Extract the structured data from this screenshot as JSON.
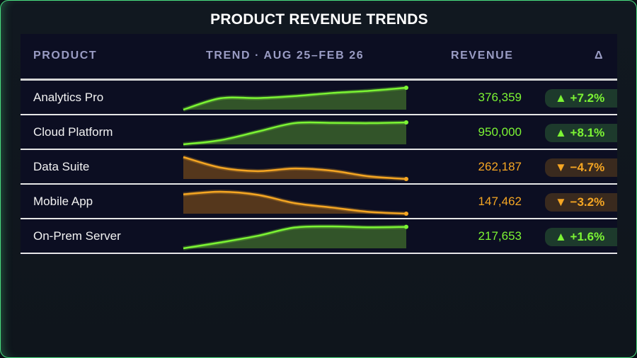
{
  "title": "PRODUCT REVENUE TRENDS",
  "headers": {
    "product": "PRODUCT",
    "trend": "TREND · AUG 25–FEB 26",
    "revenue": "REVENUE",
    "delta": "Δ"
  },
  "colors": {
    "up": "#7cf534",
    "down": "#f5a623"
  },
  "chart_data": {
    "type": "table",
    "title": "PRODUCT REVENUE TRENDS",
    "columns": [
      "PRODUCT",
      "TREND · AUG 25–FEB 26",
      "REVENUE",
      "Δ"
    ],
    "rows": [
      {
        "product": "Analytics Pro",
        "revenue": "376,359",
        "delta": "▲ +7.2%",
        "direction": "up",
        "trend": [
          0.0,
          0.52,
          0.53,
          0.62,
          0.76,
          0.86,
          1.0
        ]
      },
      {
        "product": "Cloud Platform",
        "revenue": "950,000",
        "delta": "▲ +8.1%",
        "direction": "up",
        "trend": [
          0.0,
          0.19,
          0.58,
          0.97,
          0.98,
          0.97,
          1.0
        ]
      },
      {
        "product": "Data Suite",
        "revenue": "262,187",
        "delta": "▼ −4.7%",
        "direction": "down",
        "trend": [
          1.0,
          0.52,
          0.36,
          0.48,
          0.38,
          0.12,
          0.0
        ]
      },
      {
        "product": "Mobile App",
        "revenue": "147,462",
        "delta": "▼ −3.2%",
        "direction": "down",
        "trend": [
          0.88,
          1.0,
          0.86,
          0.48,
          0.28,
          0.08,
          0.0
        ]
      },
      {
        "product": "On-Prem Server",
        "revenue": "217,653",
        "delta": "▲ +1.6%",
        "direction": "up",
        "trend": [
          0.0,
          0.27,
          0.57,
          0.95,
          1.0,
          0.96,
          0.98
        ]
      }
    ]
  }
}
